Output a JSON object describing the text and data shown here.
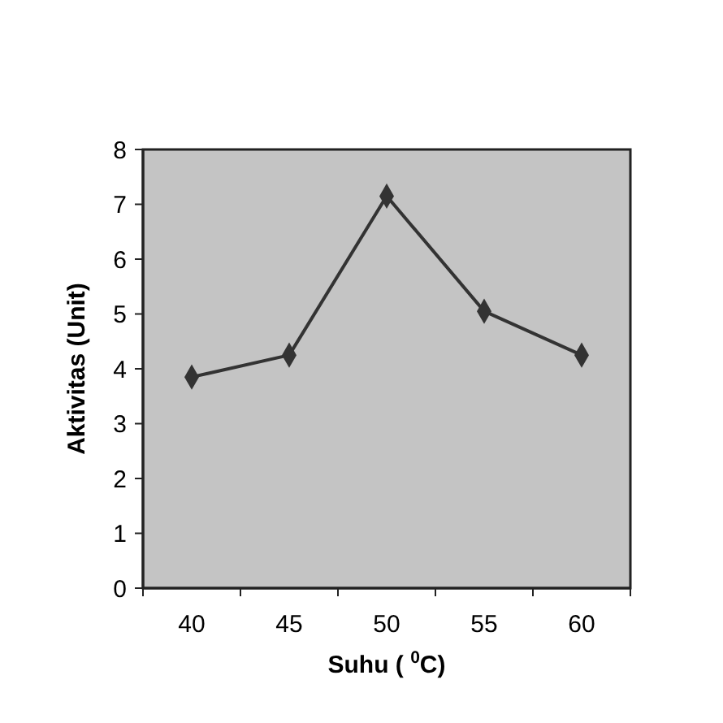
{
  "chart_data": {
    "type": "line",
    "xlabel": "Suhu ( $^{0}$C)",
    "ylabel": "Aktivitas (Unit)",
    "categories": [
      "40",
      "45",
      "50",
      "55",
      "60"
    ],
    "series": [
      {
        "color": "#333333",
        "values": [
          3.85,
          4.25,
          7.15,
          5.05,
          4.25
        ]
      }
    ],
    "ylim": [
      0,
      8
    ],
    "yticks": [
      0,
      1,
      2,
      3,
      4,
      5,
      6,
      7,
      8
    ],
    "marker": "diamond",
    "line_style": "solid",
    "grid": false
  }
}
